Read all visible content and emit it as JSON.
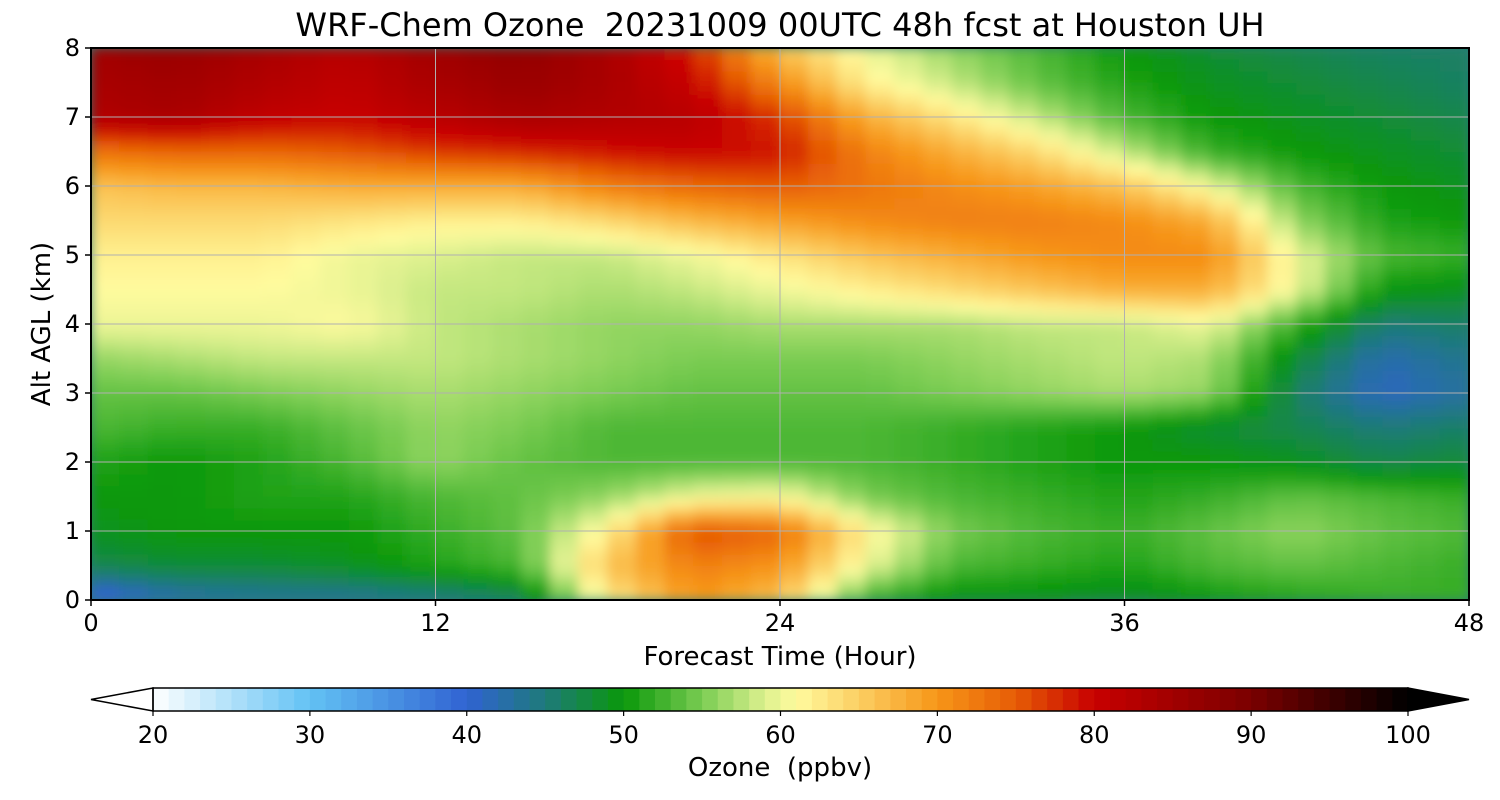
{
  "title": "WRF-Chem Ozone  20231009 00UTC 48h fcst at Houston UH",
  "chart_data": {
    "type": "heatmap",
    "title": "WRF-Chem Ozone  20231009 00UTC 48h fcst at Houston UH",
    "xlabel": "Forecast Time (Hour)",
    "ylabel": "Alt AGL (km)",
    "xlim": [
      0,
      48
    ],
    "ylim": [
      0,
      8
    ],
    "x_ticks": [
      0,
      12,
      24,
      36,
      48
    ],
    "y_ticks": [
      0,
      1,
      2,
      3,
      4,
      5,
      6,
      7,
      8
    ],
    "grid": true,
    "x_hours": [
      0,
      3,
      6,
      9,
      12,
      15,
      18,
      21,
      24,
      27,
      30,
      33,
      36,
      39,
      42,
      45,
      48
    ],
    "y_km": [
      0,
      0.5,
      1,
      1.5,
      2,
      2.5,
      3,
      3.5,
      4,
      4.5,
      5,
      5.5,
      6,
      6.5,
      7,
      7.5,
      8
    ],
    "ozone_ppbv": [
      [
        38,
        42,
        43,
        43,
        44,
        46,
        62,
        70,
        66,
        52,
        49,
        49,
        48,
        50,
        51,
        52,
        52
      ],
      [
        47,
        48,
        48,
        49,
        51,
        53,
        66,
        72,
        70,
        60,
        53,
        52,
        51,
        53,
        54,
        53,
        52
      ],
      [
        49,
        50,
        50,
        50,
        52,
        54,
        62,
        76,
        74,
        62,
        55,
        53,
        52,
        54,
        56,
        54,
        53
      ],
      [
        50,
        50,
        51,
        51,
        53,
        54,
        56,
        60,
        61,
        55,
        53,
        52,
        51,
        52,
        54,
        53,
        52
      ],
      [
        51,
        50,
        51,
        53,
        56,
        54,
        53,
        53,
        53,
        53,
        52,
        51,
        50,
        50,
        49,
        47,
        48
      ],
      [
        53,
        52,
        52,
        54,
        56,
        55,
        53,
        53,
        53,
        53,
        52,
        51,
        50,
        48,
        47,
        45,
        46
      ],
      [
        54,
        54,
        55,
        56,
        57,
        56,
        55,
        54,
        54,
        54,
        55,
        56,
        57,
        56,
        46,
        41,
        43
      ],
      [
        56,
        57,
        58,
        58,
        58,
        57,
        56,
        55,
        55,
        55,
        56,
        57,
        58,
        57,
        48,
        42,
        44
      ],
      [
        60,
        60,
        60,
        61,
        58,
        57,
        56,
        56,
        57,
        57,
        57,
        58,
        58,
        60,
        52,
        45,
        46
      ],
      [
        61,
        61,
        61,
        60,
        58,
        58,
        57,
        58,
        60,
        62,
        64,
        66,
        68,
        68,
        60,
        50,
        49
      ],
      [
        62,
        62,
        62,
        60,
        59,
        58,
        58,
        60,
        63,
        66,
        68,
        70,
        71,
        71,
        60,
        53,
        52
      ],
      [
        64,
        64,
        64,
        63,
        62,
        62,
        64,
        67,
        69,
        71,
        72,
        72,
        71,
        68,
        56,
        51,
        50
      ],
      [
        66,
        67,
        67,
        68,
        68,
        68,
        72,
        74,
        75,
        73,
        71,
        69,
        66,
        60,
        53,
        50,
        49
      ],
      [
        73,
        74,
        74,
        75,
        77,
        78,
        79,
        80,
        79,
        72,
        68,
        64,
        58,
        52,
        50,
        49,
        48
      ],
      [
        83,
        84,
        81,
        80,
        82,
        84,
        83,
        82,
        77,
        68,
        63,
        58,
        53,
        50,
        49,
        48,
        47
      ],
      [
        84,
        85,
        83,
        81,
        84,
        86,
        84,
        80,
        71,
        62,
        58,
        54,
        51,
        49,
        48,
        47,
        46
      ],
      [
        85,
        86,
        84,
        82,
        85,
        87,
        84,
        78,
        66,
        60,
        56,
        53,
        50,
        48,
        47,
        46,
        46
      ]
    ],
    "colorbar": {
      "label": "Ozone  (ppbv)",
      "min": 20,
      "max": 100,
      "ticks": [
        20,
        30,
        40,
        50,
        60,
        70,
        80,
        90,
        100
      ],
      "extend": "both",
      "color_stops": [
        {
          "v": 20,
          "c": "#ffffff"
        },
        {
          "v": 30,
          "c": "#62c2f4"
        },
        {
          "v": 40,
          "c": "#3063d2"
        },
        {
          "v": 45,
          "c": "#1e7a7a"
        },
        {
          "v": 50,
          "c": "#0a980a"
        },
        {
          "v": 55,
          "c": "#7acc52"
        },
        {
          "v": 59,
          "c": "#dcf08e"
        },
        {
          "v": 61,
          "c": "#fffb9e"
        },
        {
          "v": 70,
          "c": "#f79618"
        },
        {
          "v": 75,
          "c": "#e65c06"
        },
        {
          "v": 80,
          "c": "#c80000"
        },
        {
          "v": 90,
          "c": "#7a0000"
        },
        {
          "v": 100,
          "c": "#000000"
        }
      ]
    }
  }
}
